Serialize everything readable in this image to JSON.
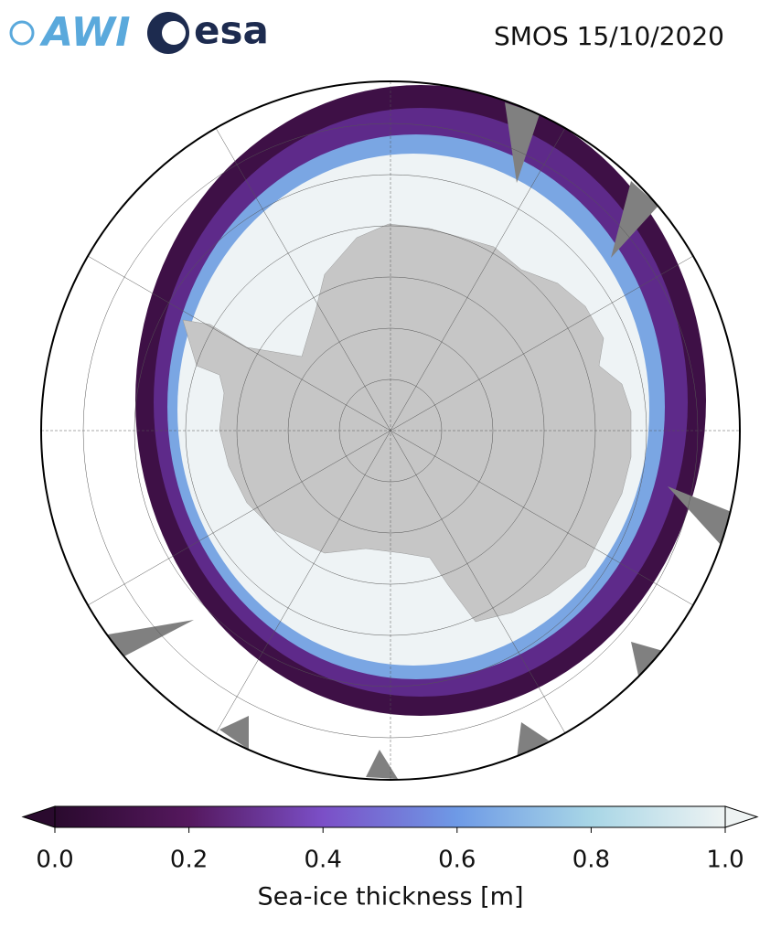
{
  "logos": {
    "awi": "AWI",
    "esa": "esa"
  },
  "title": "SMOS 15/10/2020",
  "colorbar": {
    "label": "Sea-ice thickness [m]",
    "range": [
      0,
      1
    ],
    "ticks": [
      {
        "value": 0,
        "label": "0.0"
      },
      {
        "value": 0.2,
        "label": "0.2"
      },
      {
        "value": 0.4,
        "label": "0.4"
      },
      {
        "value": 0.6,
        "label": "0.6"
      },
      {
        "value": 0.8,
        "label": "0.8"
      },
      {
        "value": 1,
        "label": "1.0"
      }
    ],
    "colors": [
      "#2a0a2e",
      "#55185e",
      "#7b4fc7",
      "#6e9ae6",
      "#a8d6e6",
      "#eef3f3"
    ]
  }
}
